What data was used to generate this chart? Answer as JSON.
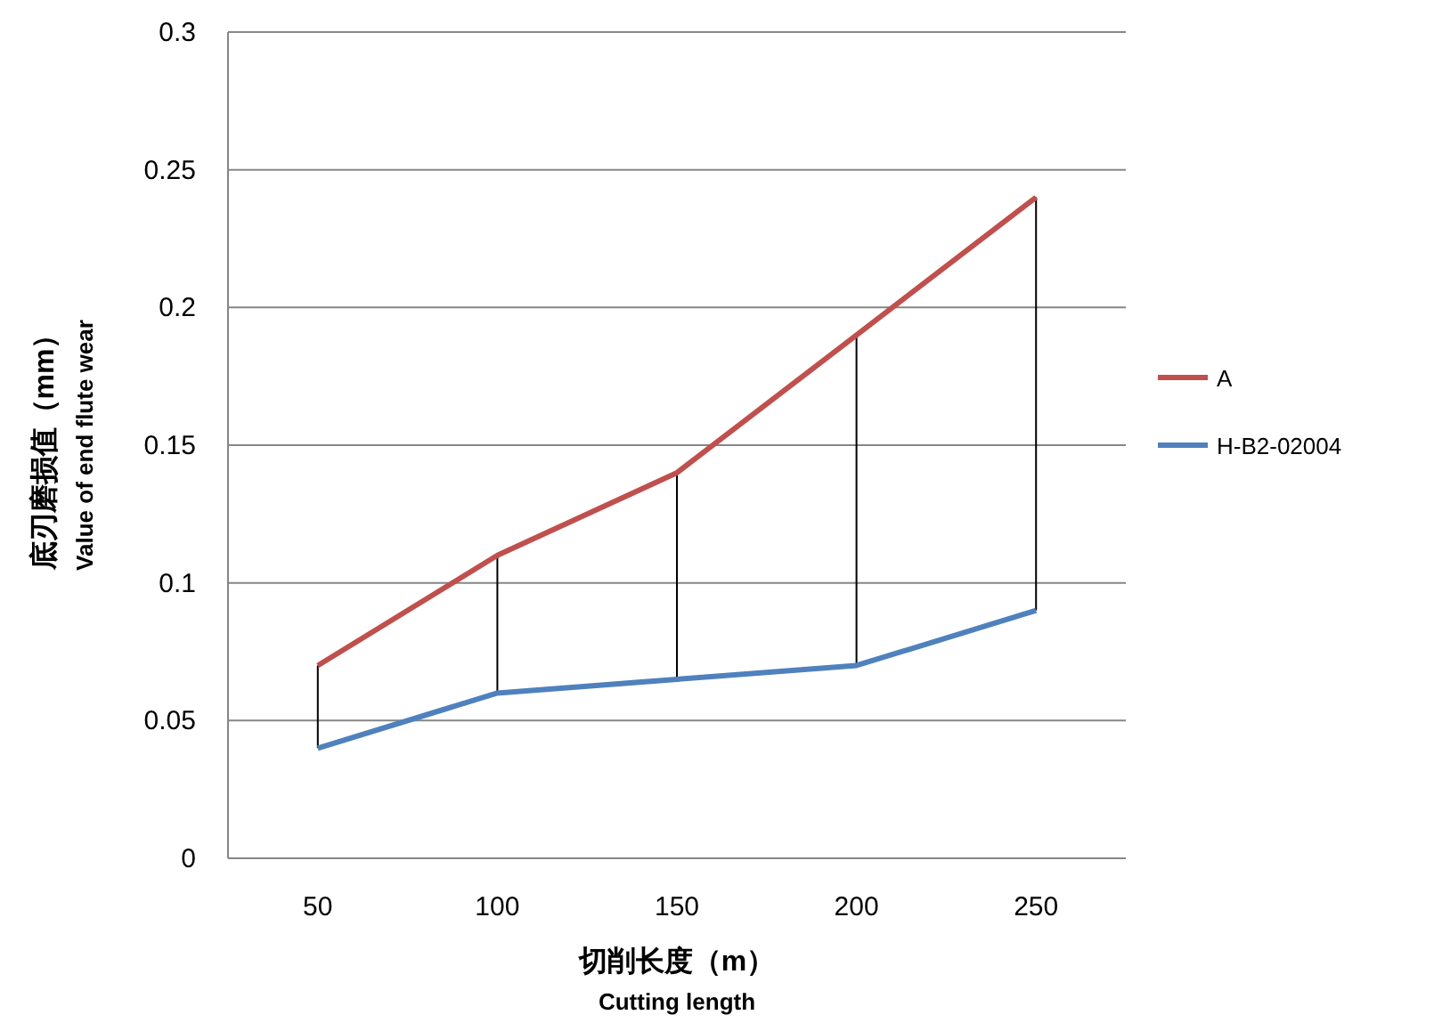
{
  "chart_data": {
    "type": "line",
    "xlabel": "切削长度（m）\nCutting length",
    "ylabel": "底刃磨损值（mm）\nValue of end flute wear",
    "categories": [
      "50",
      "100",
      "150",
      "200",
      "250"
    ],
    "series": [
      {
        "name": "A",
        "color": "#c0504d",
        "values": [
          0.07,
          0.11,
          0.14,
          0.19,
          0.24
        ],
        "errors": [
          [
            0.04,
            0.07
          ],
          [
            0.06,
            0.11
          ],
          [
            0.065,
            0.14
          ],
          [
            0.07,
            0.19
          ],
          [
            0.09,
            0.24
          ]
        ]
      },
      {
        "name": "H-B2-02004",
        "color": "#4f81bd",
        "values": [
          0.04,
          0.06,
          0.065,
          0.07,
          0.09
        ]
      }
    ],
    "ylim": [
      0,
      0.3
    ],
    "yticks": [
      0,
      0.05,
      0.1,
      0.15,
      0.2,
      0.25,
      0.3
    ],
    "grid": "y",
    "legend": "right",
    "marker": "none",
    "line_style": "solid"
  }
}
